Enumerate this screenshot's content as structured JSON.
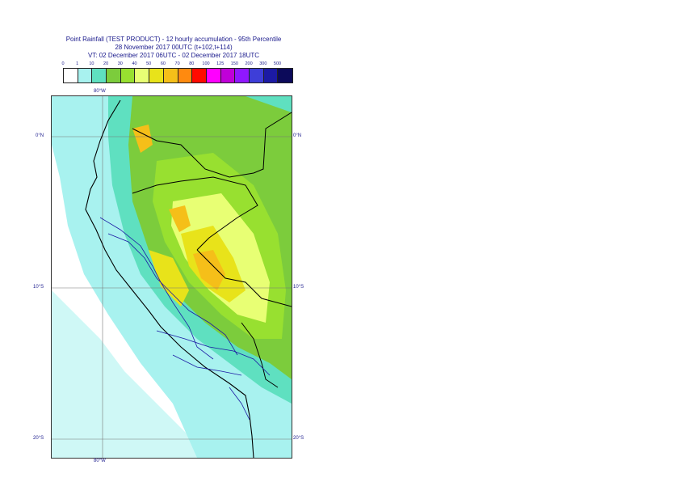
{
  "title": {
    "line1": "Point Rainfall (TEST PRODUCT) - 12 hourly accumulation - 95th Percentile",
    "line2": "28 November 2017 00UTC (t+102,t+114)",
    "line3": "VT: 02 December 2017 06UTC - 02 December 2017 18UTC"
  },
  "legend": {
    "ticks": [
      "0",
      "1",
      "10",
      "20",
      "30",
      "40",
      "50",
      "60",
      "70",
      "80",
      "100",
      "125",
      "150",
      "200",
      "300",
      "500"
    ],
    "colors": [
      "#ffffff",
      "#a8f2ef",
      "#5fe0c0",
      "#7ccc3c",
      "#98e030",
      "#e8ff74",
      "#e8e31a",
      "#f5bf19",
      "#ff8a0f",
      "#ff0b00",
      "#ff00ff",
      "#c000d8",
      "#9018ff",
      "#3e3ed8",
      "#1c1aa4",
      "#0c0a5a"
    ]
  },
  "map": {
    "lon_label_top": "80°W",
    "lon_label_bottom": "80°W",
    "lat_labels_left": [
      "0°N",
      "10°S",
      "20°S"
    ],
    "lat_labels_right": [
      "0°N",
      "10°S",
      "20°S"
    ]
  }
}
